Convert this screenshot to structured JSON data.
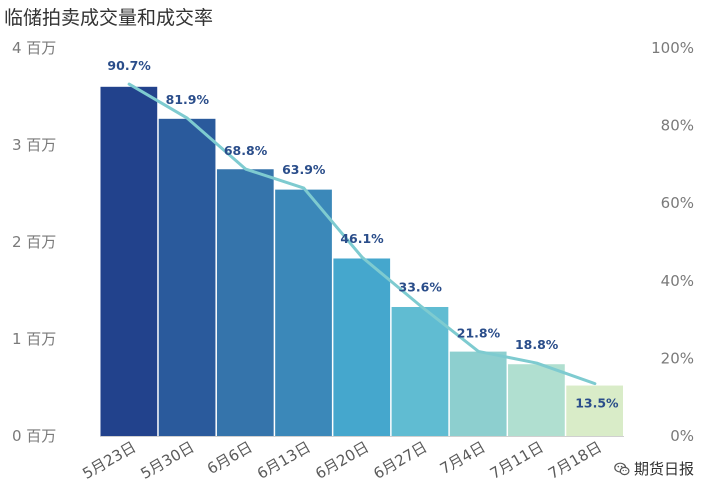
{
  "title": "临储拍卖成交量和成交率",
  "watermark": {
    "text": "期货日报",
    "icon": "wechat-icon"
  },
  "colors": {
    "bars": [
      "#22428c",
      "#2a5a9c",
      "#3574ab",
      "#3b88b9",
      "#45a7cd",
      "#60bcd2",
      "#8dcfcf",
      "#b0dfd0",
      "#d9ecc8"
    ],
    "line": "#7ecbd0",
    "label": "#2a4d8a"
  },
  "chart_data": {
    "type": "bar",
    "title": "临储拍卖成交量和成交率",
    "categories": [
      "5月23日",
      "5月30日",
      "6月6日",
      "6月13日",
      "6月20日",
      "6月27日",
      "7月4日",
      "7月11日",
      "7月18日"
    ],
    "y_left": {
      "ylim": [
        0,
        4000000
      ],
      "ticks": [
        0,
        1000000,
        2000000,
        3000000,
        4000000
      ],
      "tick_labels": [
        "0 百万",
        "1 百万",
        "2 百万",
        "3 百万",
        "4 百万"
      ]
    },
    "y_right": {
      "ylim": [
        0,
        100
      ],
      "ticks": [
        0,
        20,
        40,
        60,
        80,
        100
      ],
      "tick_labels": [
        "0%",
        "20%",
        "40%",
        "60%",
        "80%",
        "100%"
      ]
    },
    "series": [
      {
        "type": "bar",
        "axis": "left",
        "values": [
          3600000,
          3270000,
          2750000,
          2540000,
          1830000,
          1330000,
          870000,
          740000,
          520000
        ]
      },
      {
        "type": "line",
        "axis": "right",
        "values": [
          90.7,
          81.9,
          68.8,
          63.9,
          46.1,
          33.6,
          21.8,
          18.8,
          13.5
        ],
        "labels": [
          "90.7%",
          "81.9%",
          "68.8%",
          "63.9%",
          "46.1%",
          "33.6%",
          "21.8%",
          "18.8%",
          "13.5%"
        ]
      }
    ],
    "grid": false,
    "legend": "none"
  }
}
